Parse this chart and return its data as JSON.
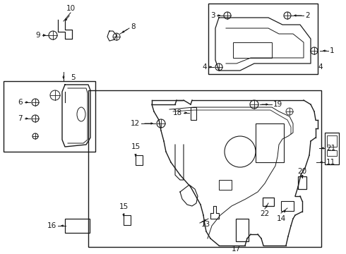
{
  "bg_color": "#ffffff",
  "line_color": "#1a1a1a",
  "fig_width": 4.9,
  "fig_height": 3.6,
  "dpi": 100,
  "font_size": 7.5
}
